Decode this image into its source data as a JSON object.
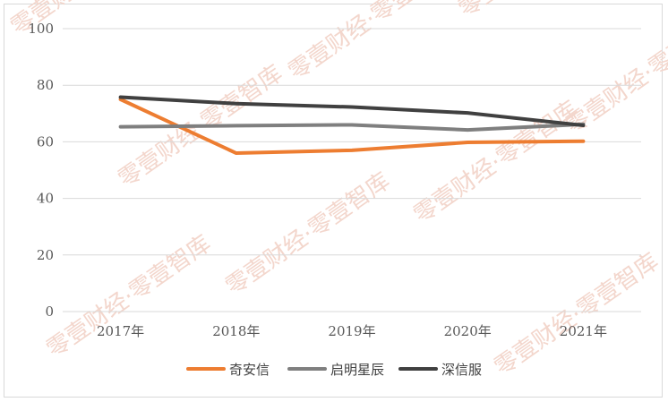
{
  "chart_data": {
    "type": "line",
    "categories": [
      "2017年",
      "2018年",
      "2019年",
      "2020年",
      "2021年"
    ],
    "series": [
      {
        "name": "奇安信",
        "color": "#ed7d31",
        "values": [
          75,
          56,
          57,
          59.8,
          60.2
        ]
      },
      {
        "name": "启明星辰",
        "color": "#7f7f7f",
        "values": [
          65.3,
          65.7,
          66,
          64.2,
          66.2
        ]
      },
      {
        "name": "深信服",
        "color": "#404040",
        "values": [
          75.8,
          73.5,
          72.3,
          70.2,
          65.8
        ]
      }
    ],
    "ylim": [
      0,
      100
    ],
    "yticks": [
      0,
      20,
      40,
      60,
      80,
      100
    ],
    "grid": true,
    "legend": "bottom"
  },
  "watermark": {
    "text": "零壹财经·零壹智库",
    "color": "#f3d6cc"
  }
}
